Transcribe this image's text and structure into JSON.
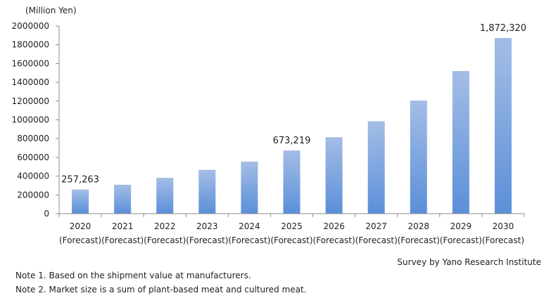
{
  "chart_data": {
    "type": "bar",
    "unit_label": "(Million  Yen)",
    "categories": [
      "2020",
      "2021",
      "2022",
      "2023",
      "2024",
      "2025",
      "2026",
      "2027",
      "2028",
      "2029",
      "2030"
    ],
    "category_sublabels": [
      "(Forecast)",
      "(Forecast)",
      "(Forecast)",
      "(Forecast)",
      "(Forecast)",
      "(Forecast)",
      "(Forecast)",
      "(Forecast)",
      "(Forecast)",
      "(Forecast)",
      "(Forecast)"
    ],
    "values": [
      257263,
      308000,
      382000,
      467000,
      555000,
      673219,
      815000,
      985000,
      1205000,
      1520000,
      1872320
    ],
    "data_labels": [
      {
        "index": 0,
        "text": "257,263"
      },
      {
        "index": 5,
        "text": "673,219"
      },
      {
        "index": 10,
        "text": "1,872,320"
      }
    ],
    "y_ticks": [
      "0",
      "200000",
      "400000",
      "600000",
      "800000",
      "1000000",
      "1200000",
      "1400000",
      "1600000",
      "1800000",
      "2000000"
    ],
    "ylim": [
      0,
      2000000
    ],
    "grid": false,
    "bar_color_top": "#a4bde6",
    "bar_color_bottom": "#5b8fd9"
  },
  "source": "Survey by Yano Research Institute",
  "notes": [
    "Note 1. Based on the shipment value at manufacturers.",
    "Note 2. Market size is a sum of plant-based meat and cultured meat."
  ]
}
